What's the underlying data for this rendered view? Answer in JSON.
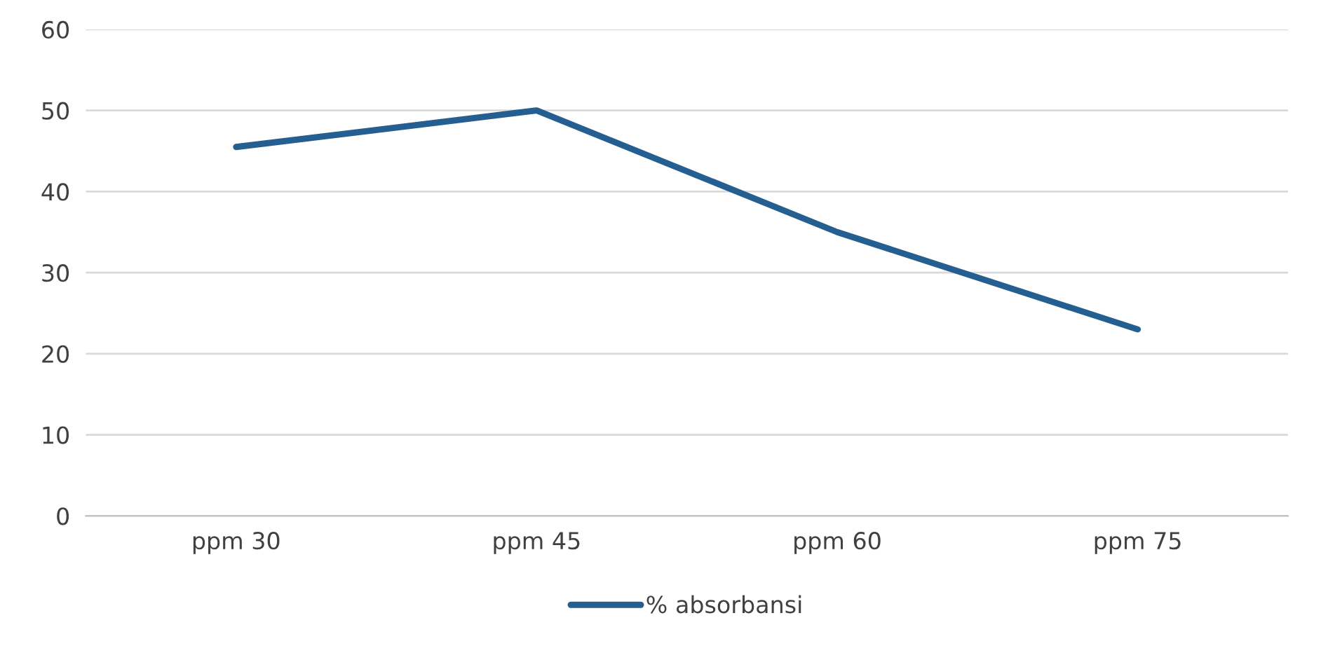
{
  "chart_data": {
    "type": "line",
    "categories": [
      "ppm 30",
      "ppm 45",
      "ppm 60",
      "ppm 75"
    ],
    "series": [
      {
        "name": "% absorbansi",
        "color": "#255e91",
        "values": [
          45.5,
          50,
          35,
          23
        ]
      }
    ],
    "ylim": [
      0,
      60
    ],
    "yticks": [
      0,
      10,
      20,
      30,
      40,
      50,
      60
    ],
    "grid": "y",
    "legend": "bottom",
    "marker": "none",
    "line_style": "solid"
  }
}
